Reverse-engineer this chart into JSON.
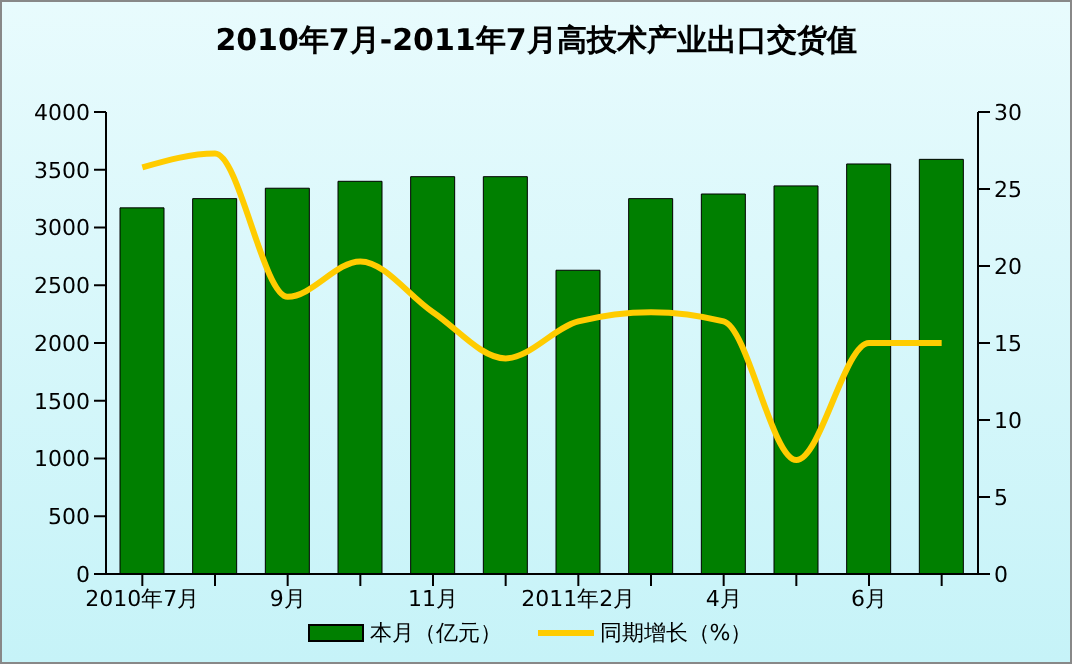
{
  "chart_data": {
    "type": "bar",
    "title": "2010年7月-2011年7月高技术产业出口交货值",
    "categories": [
      "2010年7月",
      null,
      "9月",
      null,
      "11月",
      null,
      "2011年2月",
      null,
      "4月",
      null,
      "6月",
      null
    ],
    "series": [
      {
        "name": "本月（亿元）",
        "color": "#007f00",
        "values": [
          3170,
          3250,
          3340,
          3400,
          3440,
          3440,
          2630,
          3250,
          3290,
          3360,
          3550,
          3590
        ]
      },
      {
        "name": "同期增长（%）",
        "type": "line",
        "axis": "y2",
        "color": "#ffcc00",
        "values": [
          26.4,
          27.3,
          18.0,
          20.3,
          17.0,
          14.0,
          16.4,
          17.0,
          16.4,
          7.4,
          15.0,
          15.0
        ]
      }
    ],
    "ylim": [
      0,
      4000
    ],
    "yticks": [
      0,
      500,
      1000,
      1500,
      2000,
      2500,
      3000,
      3500,
      4000
    ],
    "y2lim": [
      0,
      30
    ],
    "y2ticks": [
      0,
      5,
      10,
      15,
      20,
      25,
      30
    ],
    "grid": false,
    "legend": "bottom",
    "marker": "none",
    "line_style": "solid"
  }
}
